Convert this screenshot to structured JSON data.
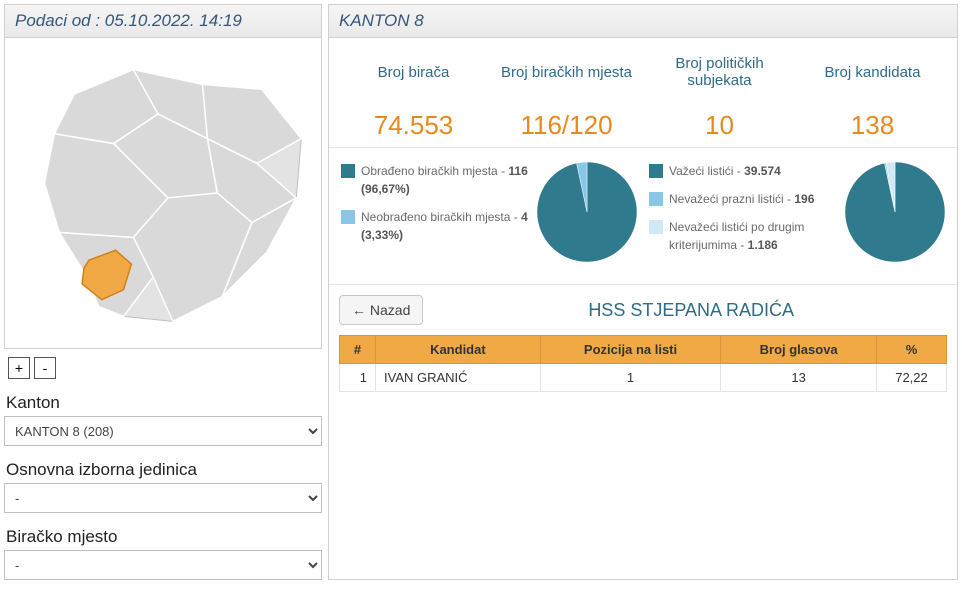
{
  "colors": {
    "accent_orange": "#e78a1e",
    "accent_blue": "#2f6a8a",
    "teal": "#2f7a8c",
    "light_blue": "#8ac6e6",
    "header_bg": "#f0a944",
    "map_fill": "#d9d9d9",
    "map_highlight": "#f0a944",
    "map_stroke": "#ffffff"
  },
  "left": {
    "header": "Podaci od : 05.10.2022. 14:19",
    "zoom_in": "+",
    "zoom_out": "-",
    "filters": {
      "kanton_label": "Kanton",
      "kanton_value": "KANTON 8 (208)",
      "oij_label": "Osnovna izborna jedinica",
      "oij_value": "-",
      "bm_label": "Biračko mjesto",
      "bm_value": "-"
    }
  },
  "right": {
    "header": "KANTON 8",
    "stats": [
      {
        "label": "Broj birača",
        "value": "74.553"
      },
      {
        "label": "Broj biračkih mjesta",
        "value": "116/120"
      },
      {
        "label": "Broj političkih subjekata",
        "value": "10"
      },
      {
        "label": "Broj kandidata",
        "value": "138"
      }
    ],
    "chart1": {
      "slices": [
        {
          "label": "Obrađeno biračkih mjesta",
          "bold": "116 (96,67%)",
          "pct": 96.67,
          "color": "#2f7a8c"
        },
        {
          "label": "Neobrađeno biračkih mjesta",
          "bold": "4 (3,33%)",
          "pct": 3.33,
          "color": "#8ac6e6"
        }
      ]
    },
    "chart2": {
      "slices": [
        {
          "label": "Važeći listići",
          "bold": "39.574",
          "pct": 96.63,
          "color": "#2f7a8c"
        },
        {
          "label": "Nevažeći prazni listići",
          "bold": "196",
          "pct": 0.48,
          "color": "#8ac6e6"
        },
        {
          "label": "Nevažeći listići po drugim kriterijumima",
          "bold": "1.186",
          "pct": 2.89,
          "color": "#cfe9f7"
        }
      ]
    },
    "back_label": "Nazad",
    "party_title": "HSS STJEPANA RADIĆA",
    "table": {
      "cols": {
        "num": "#",
        "name": "Kandidat",
        "pos": "Pozicija na listi",
        "votes": "Broj glasova",
        "pct": "%"
      },
      "rows": [
        {
          "num": "1",
          "name": "IVAN GRANIĆ",
          "pos": "1",
          "votes": "13",
          "pct": "72,22"
        }
      ]
    }
  }
}
